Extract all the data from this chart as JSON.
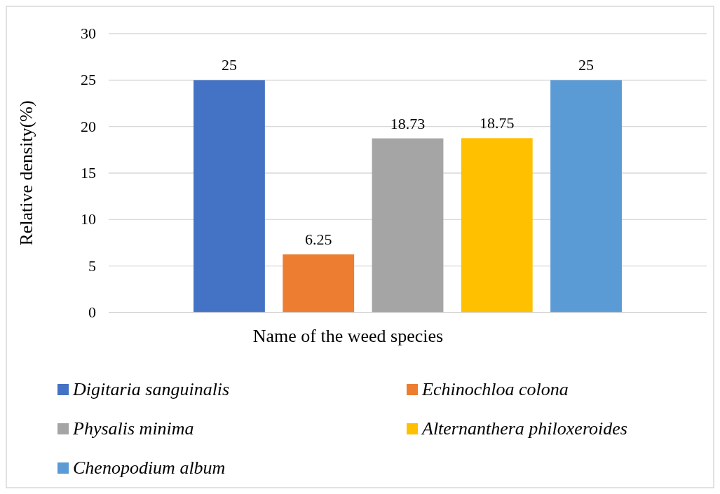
{
  "chart_data": {
    "type": "bar",
    "xlabel": "Name of the weed species",
    "ylabel": "Relative density(%)",
    "categories": [
      null
    ],
    "series": [
      {
        "name": "Digitaria sanguinalis",
        "color": "#4472c4",
        "values": [
          25
        ]
      },
      {
        "name": "Echinochloa colona",
        "color": "#ed7d31",
        "values": [
          6.25
        ]
      },
      {
        "name": "Physalis minima",
        "color": "#a5a5a5",
        "values": [
          18.73
        ]
      },
      {
        "name": "Alternanthera philoxeroides",
        "color": "#ffc000",
        "values": [
          18.75
        ]
      },
      {
        "name": "Chenopodium album",
        "color": "#5b9bd5",
        "values": [
          25
        ]
      }
    ],
    "ylim": [
      0,
      30
    ],
    "yticks": [
      0,
      5,
      10,
      15,
      20,
      25,
      30
    ],
    "grid": "y",
    "legend": "bottom",
    "data_labels": true
  }
}
